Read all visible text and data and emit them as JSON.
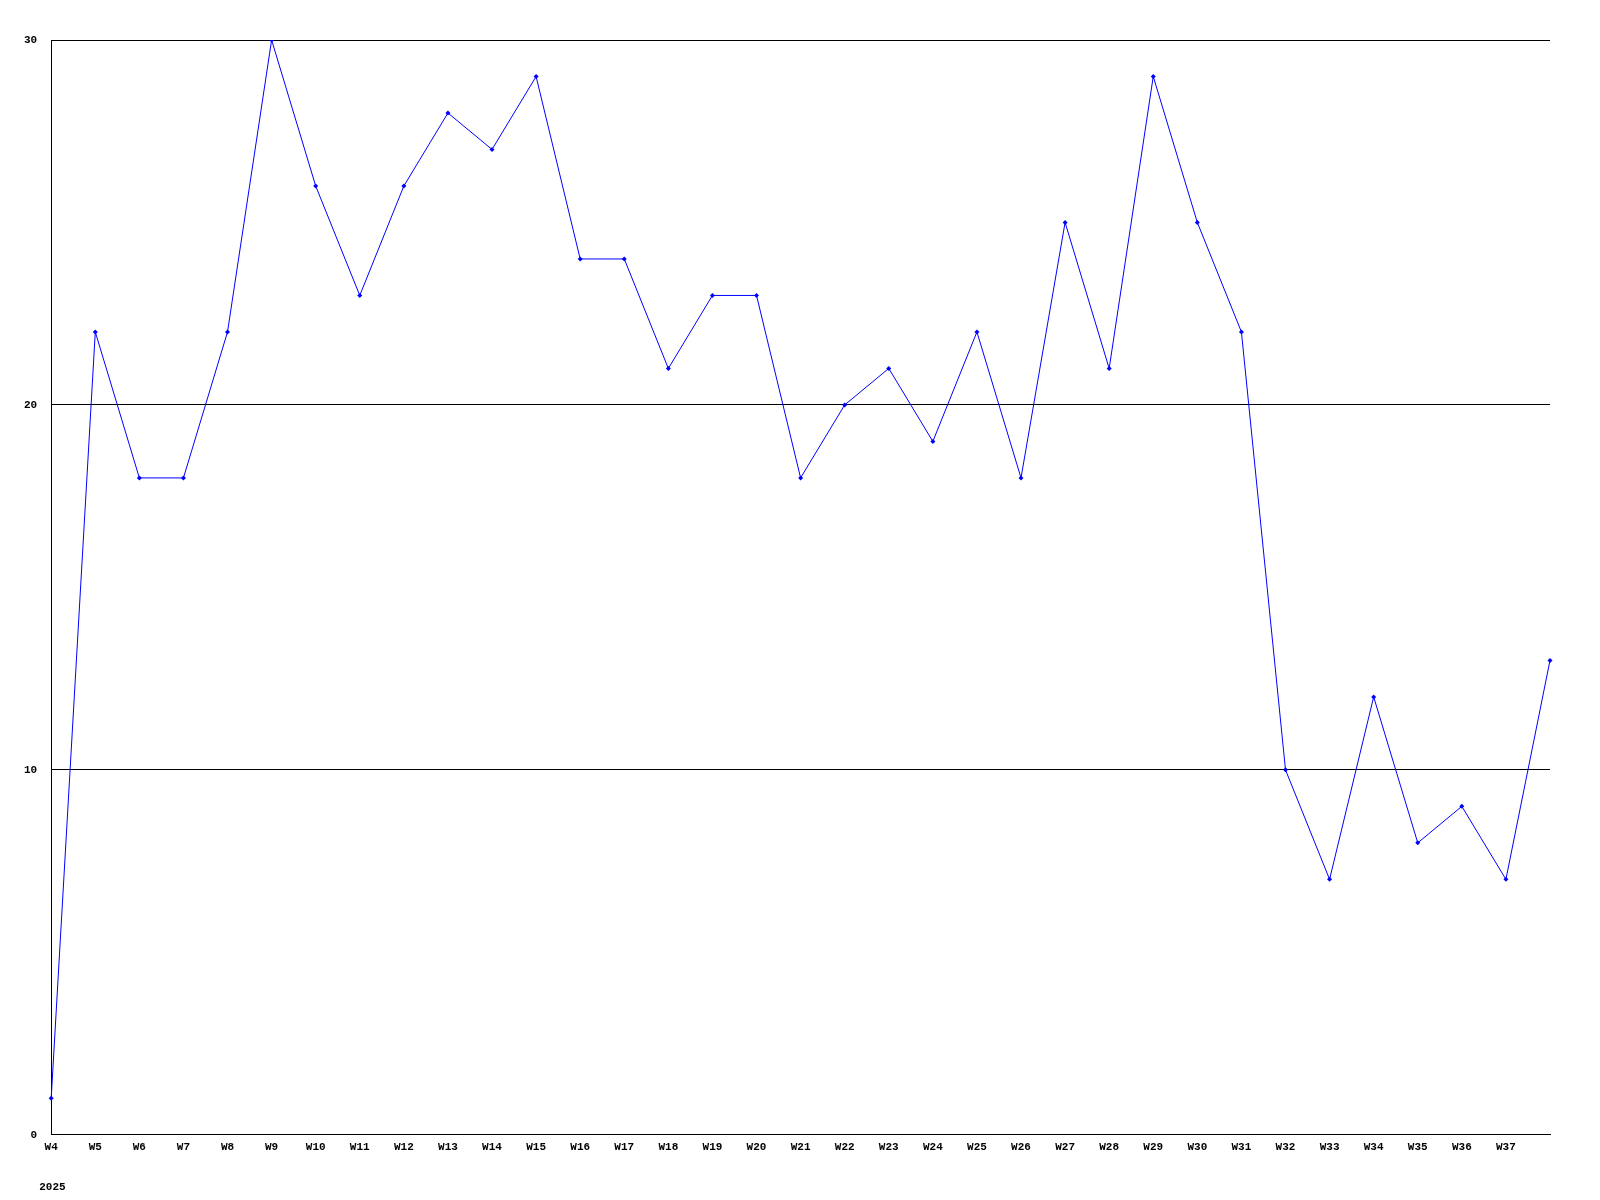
{
  "chart_data": {
    "type": "line",
    "categories": [
      "W4",
      "W5",
      "W6",
      "W7",
      "W8",
      "W9",
      "W10",
      "W11",
      "W12",
      "W13",
      "W14",
      "W15",
      "W16",
      "W17",
      "W18",
      "W19",
      "W20",
      "W21",
      "W22",
      "W23",
      "W24",
      "W25",
      "W26",
      "W27",
      "W28",
      "W29",
      "W30",
      "W31",
      "W32",
      "W33",
      "W34",
      "W35",
      "W36",
      "W37",
      null
    ],
    "series": [
      {
        "color": "#0000ff",
        "values": [
          1,
          22,
          18,
          18,
          22,
          30,
          26,
          23,
          26,
          28,
          27,
          29,
          24,
          24,
          21,
          23,
          23,
          18,
          20,
          21,
          19,
          22,
          18,
          25,
          21,
          29,
          25,
          22,
          10,
          7,
          12,
          8,
          9,
          7,
          13
        ]
      }
    ],
    "ylim": [
      0,
      30
    ],
    "yticks": [
      0,
      10,
      20,
      30
    ],
    "grid": "y",
    "marker": "diamond",
    "legend": false,
    "annotations": [
      "2025"
    ]
  }
}
